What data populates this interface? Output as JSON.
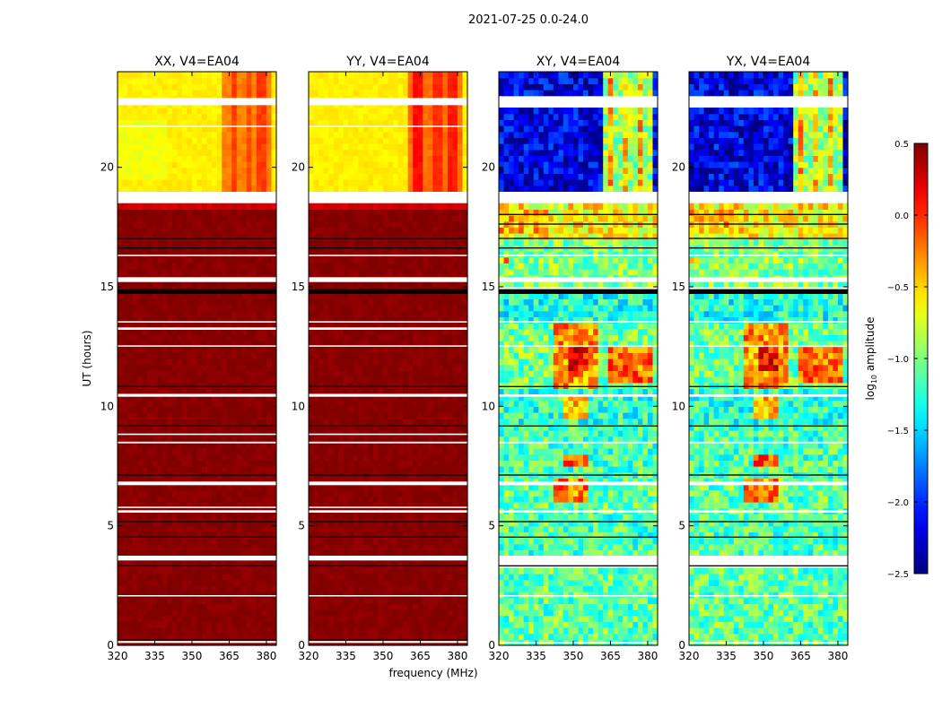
{
  "chart_data": {
    "type": "heatmap",
    "title": "2021-07-25 0.0-24.0",
    "xlabel": "frequency (MHz)",
    "ylabel": "UT (hours)",
    "xlim": [
      320,
      384
    ],
    "ylim": [
      0,
      24
    ],
    "xticks": [
      "320",
      "335",
      "350",
      "365",
      "380"
    ],
    "xtick_values": [
      320,
      335,
      350,
      365,
      380
    ],
    "yticks": [
      "0",
      "5",
      "10",
      "15",
      "20"
    ],
    "ytick_values": [
      0,
      5,
      10,
      15,
      20
    ],
    "colorbar": {
      "label_main": "log",
      "label_sub": "10",
      "label_rest": " amplitude",
      "range": [
        -2.5,
        0.5
      ],
      "ticks": [
        "0.5",
        "0.0",
        "−0.5",
        "−1.0",
        "−1.5",
        "−2.0",
        "−2.5"
      ],
      "tick_values": [
        0.5,
        0.0,
        -0.5,
        -1.0,
        -1.5,
        -2.0,
        -2.5
      ],
      "colormap": "jet"
    },
    "panels": [
      {
        "title": "XX, V4=EA04",
        "noise": 0.05,
        "bands": [
          [
            0,
            18.3,
            0.48
          ],
          [
            18.3,
            18.6,
            0.25
          ],
          [
            17.2,
            17.6,
            0.3
          ],
          [
            18.9,
            24,
            -0.58
          ]
        ],
        "features": [
          [
            362,
            383,
            18.9,
            24,
            -0.25
          ],
          [
            366,
            369,
            18.9,
            24,
            -0.05
          ],
          [
            372,
            374,
            18.9,
            24,
            -0.1
          ],
          [
            377,
            380,
            18.9,
            24,
            -0.05
          ],
          [
            320,
            340,
            19.5,
            22,
            -0.65
          ]
        ],
        "gaps": [
          [
            0.1,
            0.18
          ],
          [
            2.05,
            2.1
          ],
          [
            3.55,
            3.75
          ],
          [
            5.55,
            5.65
          ],
          [
            5.75,
            5.8
          ],
          [
            6.7,
            6.85
          ],
          [
            8.45,
            8.52
          ],
          [
            8.8,
            8.86
          ],
          [
            10.4,
            10.52
          ],
          [
            12.5,
            12.55
          ],
          [
            13.2,
            13.3
          ],
          [
            13.5,
            13.56
          ],
          [
            15.2,
            15.4
          ],
          [
            16.3,
            16.34
          ],
          [
            18.6,
            18.92
          ],
          [
            21.7,
            21.74
          ],
          [
            22.6,
            22.9
          ]
        ],
        "lines": [
          [
            0.2,
            0.25
          ],
          [
            3.3,
            3.35
          ],
          [
            4.5,
            4.55
          ],
          [
            5.15,
            5.2
          ],
          [
            7.1,
            7.15
          ],
          [
            9.15,
            9.2
          ],
          [
            10.8,
            10.85
          ],
          [
            14.7,
            14.9
          ],
          [
            16.6,
            16.65
          ],
          [
            17.0,
            17.05
          ]
        ]
      },
      {
        "title": "YY, V4=EA04",
        "noise": 0.05,
        "bands": [
          [
            0,
            18.3,
            0.48
          ],
          [
            18.3,
            18.6,
            0.25
          ],
          [
            17.2,
            17.6,
            0.3
          ],
          [
            18.9,
            24,
            -0.58
          ]
        ],
        "features": [
          [
            361,
            383,
            18.9,
            24,
            -0.2
          ],
          [
            362,
            366,
            18.9,
            24,
            0.1
          ],
          [
            371,
            374,
            18.9,
            24,
            0.0
          ],
          [
            377,
            380,
            18.9,
            24,
            0.05
          ],
          [
            3.0,
            3.05,
            0,
            0,
            0
          ]
        ],
        "gaps": [
          [
            0.1,
            0.18
          ],
          [
            2.05,
            2.1
          ],
          [
            3.55,
            3.75
          ],
          [
            5.55,
            5.65
          ],
          [
            5.75,
            5.8
          ],
          [
            6.7,
            6.85
          ],
          [
            8.45,
            8.52
          ],
          [
            8.8,
            8.86
          ],
          [
            10.4,
            10.52
          ],
          [
            12.5,
            12.55
          ],
          [
            13.2,
            13.3
          ],
          [
            13.5,
            13.56
          ],
          [
            15.2,
            15.4
          ],
          [
            16.3,
            16.34
          ],
          [
            18.6,
            18.92
          ],
          [
            21.7,
            21.74
          ],
          [
            22.6,
            22.9
          ]
        ],
        "lines": [
          [
            0.2,
            0.25
          ],
          [
            3.3,
            3.35
          ],
          [
            4.5,
            4.55
          ],
          [
            5.15,
            5.2
          ],
          [
            7.1,
            7.15
          ],
          [
            9.15,
            9.2
          ],
          [
            10.8,
            10.85
          ],
          [
            14.7,
            14.9
          ],
          [
            16.6,
            16.65
          ],
          [
            17.0,
            17.05
          ]
        ]
      },
      {
        "title": "XY, V4=EA04",
        "noise": 0.35,
        "bands": [
          [
            0,
            3.3,
            -1.1
          ],
          [
            3.75,
            5.5,
            -1.15
          ],
          [
            5.5,
            7.1,
            -1.1
          ],
          [
            7.1,
            9.2,
            -1.15
          ],
          [
            9.2,
            10.8,
            -1.25
          ],
          [
            10.8,
            13.6,
            -1.05
          ],
          [
            13.6,
            14.7,
            -1.3
          ],
          [
            14.9,
            17.0,
            -1.0
          ],
          [
            17.0,
            18.6,
            -0.6
          ],
          [
            18.9,
            22.6,
            -2.2
          ],
          [
            22.9,
            24,
            -2.2
          ]
        ],
        "features": [
          [
            343,
            357,
            6.0,
            6.9,
            -0.25
          ],
          [
            347,
            356,
            7.6,
            7.9,
            -0.15
          ],
          [
            347,
            356,
            9.6,
            10.6,
            -0.45
          ],
          [
            343,
            360,
            10.8,
            13.4,
            -0.3
          ],
          [
            348,
            356,
            11.5,
            12.5,
            0.1
          ],
          [
            365,
            382,
            11.0,
            12.6,
            -0.2
          ],
          [
            362,
            383,
            18.9,
            24,
            -0.9
          ],
          [
            364,
            367,
            18.9,
            24,
            -0.4
          ],
          [
            370,
            373,
            18.9,
            24,
            -0.5
          ],
          [
            376,
            379,
            18.9,
            24,
            -0.4
          ],
          [
            320,
            325,
            15.9,
            16.2,
            -0.3
          ],
          [
            320,
            340,
            17.2,
            18.2,
            -0.4
          ]
        ],
        "gaps": [
          [
            0.1,
            0.14
          ],
          [
            2.05,
            2.1
          ],
          [
            3.5,
            3.75
          ],
          [
            5.55,
            5.65
          ],
          [
            6.7,
            6.85
          ],
          [
            8.45,
            8.52
          ],
          [
            10.4,
            10.5
          ],
          [
            12.5,
            12.55
          ],
          [
            13.5,
            13.56
          ],
          [
            15.2,
            15.4
          ],
          [
            16.3,
            16.34
          ],
          [
            18.6,
            18.92
          ],
          [
            22.6,
            22.9
          ]
        ],
        "lines": [
          [
            3.3,
            3.35
          ],
          [
            4.5,
            4.55
          ],
          [
            5.15,
            5.2
          ],
          [
            7.1,
            7.15
          ],
          [
            9.15,
            9.2
          ],
          [
            10.8,
            10.85
          ],
          [
            14.7,
            14.9
          ],
          [
            16.6,
            16.65
          ],
          [
            17.0,
            17.05
          ],
          [
            17.6,
            17.65
          ],
          [
            18.0,
            18.05
          ]
        ]
      },
      {
        "title": "YX, V4=EA04",
        "noise": 0.35,
        "bands": [
          [
            0,
            3.3,
            -1.1
          ],
          [
            3.75,
            5.5,
            -1.15
          ],
          [
            5.5,
            7.1,
            -1.1
          ],
          [
            7.1,
            9.2,
            -1.15
          ],
          [
            9.2,
            10.8,
            -1.25
          ],
          [
            10.8,
            13.6,
            -1.05
          ],
          [
            13.6,
            14.7,
            -1.3
          ],
          [
            14.9,
            17.0,
            -1.0
          ],
          [
            17.0,
            18.6,
            -0.6
          ],
          [
            18.9,
            22.6,
            -2.2
          ],
          [
            22.9,
            24,
            -2.2
          ]
        ],
        "features": [
          [
            343,
            357,
            6.0,
            6.9,
            -0.25
          ],
          [
            347,
            356,
            7.6,
            7.9,
            -0.15
          ],
          [
            347,
            356,
            9.6,
            10.6,
            -0.45
          ],
          [
            343,
            360,
            10.8,
            13.4,
            -0.3
          ],
          [
            348,
            356,
            11.5,
            12.5,
            0.1
          ],
          [
            365,
            382,
            11.0,
            12.6,
            -0.2
          ],
          [
            362,
            383,
            18.9,
            24,
            -0.9
          ],
          [
            364,
            367,
            18.9,
            24,
            -0.4
          ],
          [
            370,
            373,
            18.9,
            24,
            -0.5
          ],
          [
            376,
            379,
            18.9,
            24,
            -0.4
          ],
          [
            320,
            325,
            15.9,
            16.2,
            -0.3
          ],
          [
            320,
            340,
            17.2,
            18.2,
            -0.4
          ]
        ],
        "gaps": [
          [
            0.1,
            0.14
          ],
          [
            2.05,
            2.1
          ],
          [
            3.5,
            3.75
          ],
          [
            5.55,
            5.65
          ],
          [
            6.7,
            6.85
          ],
          [
            8.45,
            8.52
          ],
          [
            10.4,
            10.5
          ],
          [
            12.5,
            12.55
          ],
          [
            13.5,
            13.56
          ],
          [
            15.2,
            15.4
          ],
          [
            16.3,
            16.34
          ],
          [
            18.6,
            18.92
          ],
          [
            22.6,
            22.9
          ]
        ],
        "lines": [
          [
            3.3,
            3.35
          ],
          [
            4.5,
            4.55
          ],
          [
            5.15,
            5.2
          ],
          [
            7.1,
            7.15
          ],
          [
            9.15,
            9.2
          ],
          [
            10.8,
            10.85
          ],
          [
            14.7,
            14.9
          ],
          [
            16.6,
            16.65
          ],
          [
            17.0,
            17.05
          ],
          [
            17.6,
            17.65
          ],
          [
            18.0,
            18.05
          ]
        ]
      }
    ]
  }
}
